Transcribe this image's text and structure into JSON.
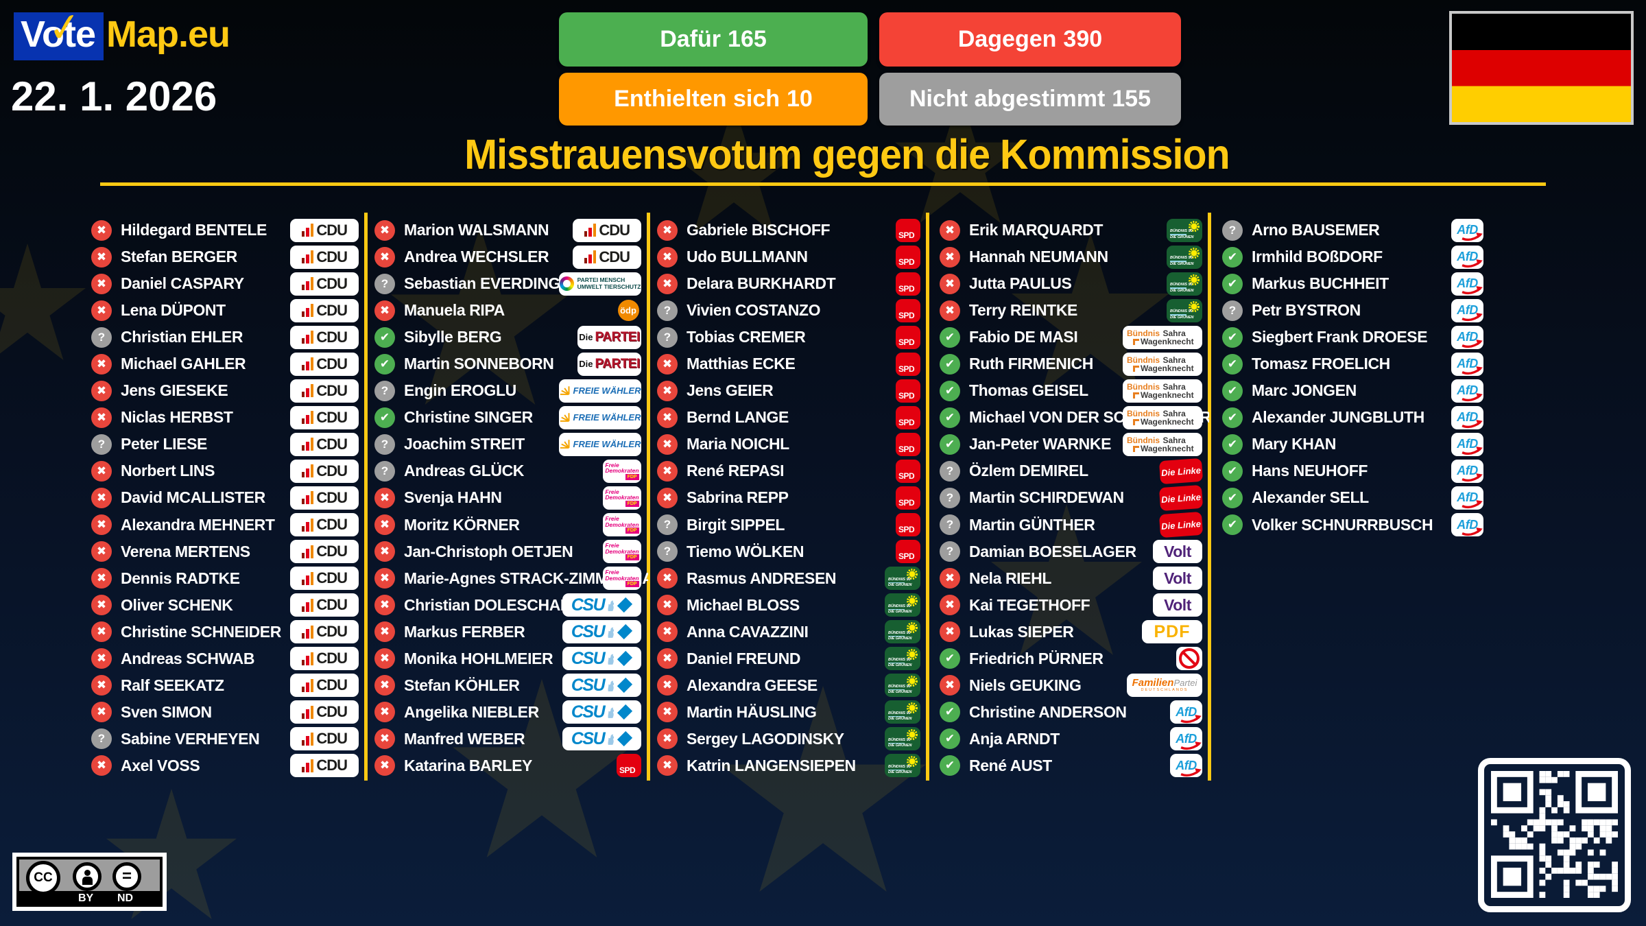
{
  "header": {
    "logo": {
      "vote": "Vote",
      "map": "Map.eu",
      "check_icon": "✓"
    },
    "date": "22. 1. 2026",
    "title": "Misstrauensvotum gegen die Kommission",
    "results": [
      {
        "id": "for",
        "label": "Dafür",
        "count": "165",
        "color": "#4CAF50"
      },
      {
        "id": "against",
        "label": "Dagegen",
        "count": "390",
        "color": "#F44336"
      },
      {
        "id": "abstain",
        "label": "Enthielten sich",
        "count": "10",
        "color": "#FF9800"
      },
      {
        "id": "novote",
        "label": "Nicht abgestimmt",
        "count": "155",
        "color": "#9E9E9E"
      }
    ]
  },
  "accent_yellow": "#FFC913",
  "icons": {
    "for": "✔",
    "against": "✖",
    "novote": "?"
  },
  "vote_colors": {
    "for": "#4DAE51",
    "against": "#E8463C",
    "novote": "#9E9E9E"
  },
  "parties": {
    "cdu": {
      "label": "CDU",
      "color": "#1D1D1B",
      "bar_colors": [
        "#8C1503",
        "#E2001A",
        "#F08800"
      ]
    },
    "tierschutz": {
      "lines": [
        "PARTEI MENSCH",
        "UMWELT TIERSCHUTZ"
      ],
      "color": "#0E4C4C"
    },
    "oedp": {
      "label": "ödp",
      "color": "#F08A00"
    },
    "diepartei": {
      "prefix": "Die",
      "label": "PARTEI",
      "color": "#B5152B"
    },
    "fw": {
      "label": "FREIE WÄHLER",
      "color": "#1A6DB5",
      "sun_color": "#F5A500"
    },
    "fdp": {
      "lines": [
        "Freie",
        "Demokraten"
      ],
      "label": "FDP",
      "color": "#E5007D",
      "label_color": "#FFED00"
    },
    "csu": {
      "label": "CSU",
      "color": "#0087CB"
    },
    "spd": {
      "label": "SPD",
      "color": "#E3000F"
    },
    "gruene": {
      "lines": [
        "BÜNDNIS 90",
        "DIE GRÜNEN"
      ],
      "color": "#175F31",
      "flower_color": "#FFEC00"
    },
    "bsw": {
      "lines": [
        "Bündnis",
        "Sahra",
        "Wagenknecht"
      ],
      "color": "#E87F1F",
      "text_color": "#3B3B3B"
    },
    "linke": {
      "label": "Die Linke",
      "color": "#E3000F"
    },
    "volt": {
      "label": "Volt",
      "color": "#502379"
    },
    "pdf": {
      "label": "PDF",
      "color": "#F9B200"
    },
    "indep": {
      "color": "#E30613"
    },
    "familie": {
      "label": "Familien",
      "label2": "Partei",
      "label3": "DEUTSCHLANDS",
      "color": "#EE7100"
    },
    "afd": {
      "label": "AfD",
      "color": "#1C9FDA",
      "swoosh_color": "#E30613"
    }
  },
  "columns": [
    [
      {
        "name": "Hildegard BENTELE",
        "vote": "against",
        "party": "cdu"
      },
      {
        "name": "Stefan BERGER",
        "vote": "against",
        "party": "cdu"
      },
      {
        "name": "Daniel CASPARY",
        "vote": "against",
        "party": "cdu"
      },
      {
        "name": "Lena DÜPONT",
        "vote": "against",
        "party": "cdu"
      },
      {
        "name": "Christian EHLER",
        "vote": "novote",
        "party": "cdu"
      },
      {
        "name": "Michael GAHLER",
        "vote": "against",
        "party": "cdu"
      },
      {
        "name": "Jens GIESEKE",
        "vote": "against",
        "party": "cdu"
      },
      {
        "name": "Niclas HERBST",
        "vote": "against",
        "party": "cdu"
      },
      {
        "name": "Peter LIESE",
        "vote": "novote",
        "party": "cdu"
      },
      {
        "name": "Norbert LINS",
        "vote": "against",
        "party": "cdu"
      },
      {
        "name": "David MCALLISTER",
        "vote": "against",
        "party": "cdu"
      },
      {
        "name": "Alexandra MEHNERT",
        "vote": "against",
        "party": "cdu"
      },
      {
        "name": "Verena MERTENS",
        "vote": "against",
        "party": "cdu"
      },
      {
        "name": "Dennis RADTKE",
        "vote": "against",
        "party": "cdu"
      },
      {
        "name": "Oliver SCHENK",
        "vote": "against",
        "party": "cdu"
      },
      {
        "name": "Christine SCHNEIDER",
        "vote": "against",
        "party": "cdu"
      },
      {
        "name": "Andreas SCHWAB",
        "vote": "against",
        "party": "cdu"
      },
      {
        "name": "Ralf SEEKATZ",
        "vote": "against",
        "party": "cdu"
      },
      {
        "name": "Sven SIMON",
        "vote": "against",
        "party": "cdu"
      },
      {
        "name": "Sabine VERHEYEN",
        "vote": "novote",
        "party": "cdu"
      },
      {
        "name": "Axel VOSS",
        "vote": "against",
        "party": "cdu"
      }
    ],
    [
      {
        "name": "Marion WALSMANN",
        "vote": "against",
        "party": "cdu"
      },
      {
        "name": "Andrea WECHSLER",
        "vote": "against",
        "party": "cdu"
      },
      {
        "name": "Sebastian EVERDING",
        "vote": "novote",
        "party": "tierschutz"
      },
      {
        "name": "Manuela RIPA",
        "vote": "against",
        "party": "oedp"
      },
      {
        "name": "Sibylle BERG",
        "vote": "for",
        "party": "diepartei"
      },
      {
        "name": "Martin SONNEBORN",
        "vote": "for",
        "party": "diepartei"
      },
      {
        "name": "Engin EROGLU",
        "vote": "novote",
        "party": "fw"
      },
      {
        "name": "Christine SINGER",
        "vote": "for",
        "party": "fw"
      },
      {
        "name": "Joachim STREIT",
        "vote": "novote",
        "party": "fw"
      },
      {
        "name": "Andreas GLÜCK",
        "vote": "novote",
        "party": "fdp"
      },
      {
        "name": "Svenja HAHN",
        "vote": "against",
        "party": "fdp"
      },
      {
        "name": "Moritz KÖRNER",
        "vote": "against",
        "party": "fdp"
      },
      {
        "name": "Jan-Christoph OETJEN",
        "vote": "against",
        "party": "fdp"
      },
      {
        "name": "Marie-Agnes STRACK-ZIMMERMANN",
        "vote": "against",
        "party": "fdp"
      },
      {
        "name": "Christian DOLESCHAL",
        "vote": "against",
        "party": "csu"
      },
      {
        "name": "Markus FERBER",
        "vote": "against",
        "party": "csu"
      },
      {
        "name": "Monika HOHLMEIER",
        "vote": "against",
        "party": "csu"
      },
      {
        "name": "Stefan KÖHLER",
        "vote": "against",
        "party": "csu"
      },
      {
        "name": "Angelika NIEBLER",
        "vote": "against",
        "party": "csu"
      },
      {
        "name": "Manfred WEBER",
        "vote": "against",
        "party": "csu"
      },
      {
        "name": "Katarina BARLEY",
        "vote": "against",
        "party": "spd"
      }
    ],
    [
      {
        "name": "Gabriele BISCHOFF",
        "vote": "against",
        "party": "spd"
      },
      {
        "name": "Udo BULLMANN",
        "vote": "against",
        "party": "spd"
      },
      {
        "name": "Delara BURKHARDT",
        "vote": "against",
        "party": "spd"
      },
      {
        "name": "Vivien COSTANZO",
        "vote": "novote",
        "party": "spd"
      },
      {
        "name": "Tobias CREMER",
        "vote": "novote",
        "party": "spd"
      },
      {
        "name": "Matthias ECKE",
        "vote": "against",
        "party": "spd"
      },
      {
        "name": "Jens GEIER",
        "vote": "against",
        "party": "spd"
      },
      {
        "name": "Bernd LANGE",
        "vote": "against",
        "party": "spd"
      },
      {
        "name": "Maria NOICHL",
        "vote": "against",
        "party": "spd"
      },
      {
        "name": "René REPASI",
        "vote": "against",
        "party": "spd"
      },
      {
        "name": "Sabrina REPP",
        "vote": "against",
        "party": "spd"
      },
      {
        "name": "Birgit SIPPEL",
        "vote": "novote",
        "party": "spd"
      },
      {
        "name": "Tiemo WÖLKEN",
        "vote": "novote",
        "party": "spd"
      },
      {
        "name": "Rasmus ANDRESEN",
        "vote": "against",
        "party": "gruene"
      },
      {
        "name": "Michael BLOSS",
        "vote": "against",
        "party": "gruene"
      },
      {
        "name": "Anna CAVAZZINI",
        "vote": "against",
        "party": "gruene"
      },
      {
        "name": "Daniel FREUND",
        "vote": "against",
        "party": "gruene"
      },
      {
        "name": "Alexandra GEESE",
        "vote": "against",
        "party": "gruene"
      },
      {
        "name": "Martin HÄUSLING",
        "vote": "against",
        "party": "gruene"
      },
      {
        "name": "Sergey LAGODINSKY",
        "vote": "against",
        "party": "gruene"
      },
      {
        "name": "Katrin LANGENSIEPEN",
        "vote": "against",
        "party": "gruene"
      }
    ],
    [
      {
        "name": "Erik MARQUARDT",
        "vote": "against",
        "party": "gruene"
      },
      {
        "name": "Hannah NEUMANN",
        "vote": "against",
        "party": "gruene"
      },
      {
        "name": "Jutta PAULUS",
        "vote": "against",
        "party": "gruene"
      },
      {
        "name": "Terry REINTKE",
        "vote": "against",
        "party": "gruene"
      },
      {
        "name": "Fabio DE MASI",
        "vote": "for",
        "party": "bsw"
      },
      {
        "name": "Ruth FIRMENICH",
        "vote": "for",
        "party": "bsw"
      },
      {
        "name": "Thomas GEISEL",
        "vote": "for",
        "party": "bsw"
      },
      {
        "name": "Michael VON DER SCHULENBURG",
        "vote": "for",
        "party": "bsw"
      },
      {
        "name": "Jan-Peter WARNKE",
        "vote": "for",
        "party": "bsw"
      },
      {
        "name": "Özlem DEMIREL",
        "vote": "novote",
        "party": "linke"
      },
      {
        "name": "Martin SCHIRDEWAN",
        "vote": "novote",
        "party": "linke"
      },
      {
        "name": "Martin GÜNTHER",
        "vote": "novote",
        "party": "linke"
      },
      {
        "name": "Damian BOESELAGER",
        "vote": "novote",
        "party": "volt"
      },
      {
        "name": "Nela RIEHL",
        "vote": "against",
        "party": "volt"
      },
      {
        "name": "Kai TEGETHOFF",
        "vote": "against",
        "party": "volt"
      },
      {
        "name": "Lukas SIEPER",
        "vote": "against",
        "party": "pdf"
      },
      {
        "name": "Friedrich PÜRNER",
        "vote": "for",
        "party": "indep"
      },
      {
        "name": "Niels GEUKING",
        "vote": "against",
        "party": "familie"
      },
      {
        "name": "Christine ANDERSON",
        "vote": "for",
        "party": "afd"
      },
      {
        "name": "Anja ARNDT",
        "vote": "for",
        "party": "afd"
      },
      {
        "name": "René AUST",
        "vote": "for",
        "party": "afd"
      }
    ],
    [
      {
        "name": "Arno BAUSEMER",
        "vote": "novote",
        "party": "afd"
      },
      {
        "name": "Irmhild BOßDORF",
        "vote": "for",
        "party": "afd"
      },
      {
        "name": "Markus BUCHHEIT",
        "vote": "for",
        "party": "afd"
      },
      {
        "name": "Petr BYSTRON",
        "vote": "novote",
        "party": "afd"
      },
      {
        "name": "Siegbert Frank DROESE",
        "vote": "for",
        "party": "afd"
      },
      {
        "name": "Tomasz FROELICH",
        "vote": "for",
        "party": "afd"
      },
      {
        "name": "Marc JONGEN",
        "vote": "for",
        "party": "afd"
      },
      {
        "name": "Alexander JUNGBLUTH",
        "vote": "for",
        "party": "afd"
      },
      {
        "name": "Mary KHAN",
        "vote": "for",
        "party": "afd"
      },
      {
        "name": "Hans NEUHOFF",
        "vote": "for",
        "party": "afd"
      },
      {
        "name": "Alexander SELL",
        "vote": "for",
        "party": "afd"
      },
      {
        "name": "Volker SCHNURRBUSCH",
        "vote": "for",
        "party": "afd"
      }
    ]
  ],
  "footer": {
    "license": {
      "cc": "CC",
      "by": "BY",
      "nd": "ND"
    }
  }
}
